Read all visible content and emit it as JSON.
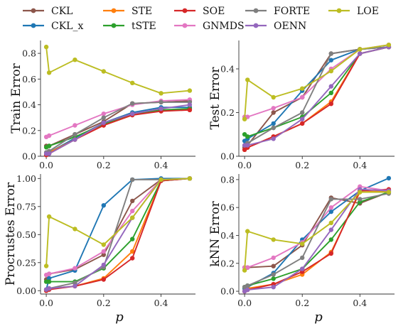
{
  "figure": {
    "xlabel": "p"
  },
  "legend": [
    {
      "name": "CKL",
      "color": "#8c564b"
    },
    {
      "name": "CKL_x",
      "color": "#1f77b4"
    },
    {
      "name": "STE",
      "color": "#ff7f0e"
    },
    {
      "name": "tSTE",
      "color": "#2ca02c"
    },
    {
      "name": "SOE",
      "color": "#d62728"
    },
    {
      "name": "GNMDS",
      "color": "#e377c2"
    },
    {
      "name": "FORTE",
      "color": "#7f7f7f"
    },
    {
      "name": "OENN",
      "color": "#9467bd"
    },
    {
      "name": "LOE",
      "color": "#bcbd22"
    }
  ],
  "chart_data": [
    {
      "type": "line",
      "ylabel": "Train Error",
      "xlim": [
        -0.02,
        0.52
      ],
      "ylim": [
        0,
        0.9
      ],
      "xticks": [
        "0.0",
        "0.2",
        "0.4"
      ],
      "yticks": [
        "0.0",
        "0.2",
        "0.4",
        "0.6",
        "0.8"
      ],
      "series": [
        {
          "name": "CKL",
          "x": [
            0,
            0.01,
            0.1,
            0.2,
            0.3,
            0.4,
            0.5
          ],
          "y": [
            0.08,
            0.08,
            0.17,
            0.27,
            0.41,
            0.42,
            0.43
          ]
        },
        {
          "name": "CKL_x",
          "x": [
            0,
            0.01,
            0.1,
            0.2,
            0.3,
            0.4,
            0.5
          ],
          "y": [
            0.02,
            0.03,
            0.14,
            0.26,
            0.34,
            0.38,
            0.38
          ]
        },
        {
          "name": "STE",
          "x": [
            0,
            0.01,
            0.1,
            0.2,
            0.3,
            0.4,
            0.5
          ],
          "y": [
            0.01,
            0.03,
            0.13,
            0.24,
            0.32,
            0.36,
            0.36
          ]
        },
        {
          "name": "tSTE",
          "x": [
            0,
            0.01,
            0.1,
            0.2,
            0.3,
            0.4,
            0.5
          ],
          "y": [
            0.07,
            0.08,
            0.15,
            0.25,
            0.33,
            0.36,
            0.37
          ]
        },
        {
          "name": "SOE",
          "x": [
            0,
            0.01,
            0.1,
            0.2,
            0.3,
            0.4,
            0.5
          ],
          "y": [
            0.01,
            0.02,
            0.13,
            0.24,
            0.32,
            0.35,
            0.36
          ]
        },
        {
          "name": "GNMDS",
          "x": [
            0,
            0.01,
            0.1,
            0.2,
            0.3,
            0.4,
            0.5
          ],
          "y": [
            0.15,
            0.16,
            0.24,
            0.33,
            0.4,
            0.43,
            0.44
          ]
        },
        {
          "name": "FORTE",
          "x": [
            0,
            0.01,
            0.1,
            0.2,
            0.3,
            0.4,
            0.5
          ],
          "y": [
            0.03,
            0.04,
            0.17,
            0.3,
            0.41,
            0.42,
            0.42
          ]
        },
        {
          "name": "OENN",
          "x": [
            0,
            0.01,
            0.1,
            0.2,
            0.3,
            0.4,
            0.5
          ],
          "y": [
            0.02,
            0.02,
            0.13,
            0.26,
            0.33,
            0.37,
            0.4
          ]
        },
        {
          "name": "LOE",
          "x": [
            0,
            0.01,
            0.1,
            0.2,
            0.3,
            0.4,
            0.5
          ],
          "y": [
            0.85,
            0.65,
            0.75,
            0.66,
            0.57,
            0.49,
            0.51
          ]
        }
      ]
    },
    {
      "type": "line",
      "ylabel": "Test Error",
      "xlim": [
        -0.02,
        0.52
      ],
      "ylim": [
        0,
        0.53
      ],
      "xticks": [
        "0.0",
        "0.2",
        "0.4"
      ],
      "yticks": [
        "0.0",
        "0.2",
        "0.4"
      ],
      "series": [
        {
          "name": "CKL",
          "x": [
            0,
            0.01,
            0.1,
            0.2,
            0.3,
            0.4,
            0.5
          ],
          "y": [
            0.04,
            0.05,
            0.2,
            0.27,
            0.47,
            0.49,
            0.5
          ]
        },
        {
          "name": "CKL_x",
          "x": [
            0,
            0.01,
            0.1,
            0.2,
            0.3,
            0.4,
            0.5
          ],
          "y": [
            0.07,
            0.08,
            0.15,
            0.3,
            0.44,
            0.49,
            0.5
          ]
        },
        {
          "name": "STE",
          "x": [
            0,
            0.01,
            0.1,
            0.2,
            0.3,
            0.4,
            0.5
          ],
          "y": [
            0.03,
            0.04,
            0.09,
            0.15,
            0.25,
            0.47,
            0.5
          ]
        },
        {
          "name": "tSTE",
          "x": [
            0,
            0.01,
            0.1,
            0.2,
            0.3,
            0.4,
            0.5
          ],
          "y": [
            0.1,
            0.09,
            0.13,
            0.18,
            0.29,
            0.47,
            0.5
          ]
        },
        {
          "name": "SOE",
          "x": [
            0,
            0.01,
            0.1,
            0.2,
            0.3,
            0.4,
            0.5
          ],
          "y": [
            0.03,
            0.04,
            0.09,
            0.15,
            0.24,
            0.47,
            0.5
          ]
        },
        {
          "name": "GNMDS",
          "x": [
            0,
            0.01,
            0.1,
            0.2,
            0.3,
            0.4,
            0.5
          ],
          "y": [
            0.18,
            0.18,
            0.22,
            0.27,
            0.4,
            0.49,
            0.51
          ]
        },
        {
          "name": "FORTE",
          "x": [
            0,
            0.01,
            0.1,
            0.2,
            0.3,
            0.4,
            0.5
          ],
          "y": [
            0.05,
            0.06,
            0.13,
            0.2,
            0.47,
            0.49,
            0.5
          ]
        },
        {
          "name": "OENN",
          "x": [
            0,
            0.01,
            0.1,
            0.2,
            0.3,
            0.4,
            0.5
          ],
          "y": [
            0.05,
            0.05,
            0.08,
            0.17,
            0.32,
            0.47,
            0.5
          ]
        },
        {
          "name": "LOE",
          "x": [
            0,
            0.01,
            0.1,
            0.2,
            0.3,
            0.4,
            0.5
          ],
          "y": [
            0.17,
            0.35,
            0.27,
            0.31,
            0.39,
            0.49,
            0.51
          ]
        }
      ]
    },
    {
      "type": "line",
      "ylabel": "Procrustes Error",
      "xlim": [
        -0.02,
        0.52
      ],
      "ylim": [
        -0.03,
        1.04
      ],
      "xticks": [
        "0.0",
        "0.2",
        "0.4"
      ],
      "yticks": [
        "0.00",
        "0.25",
        "0.50",
        "0.75",
        "1.00"
      ],
      "series": [
        {
          "name": "CKL",
          "x": [
            0,
            0.01,
            0.1,
            0.2,
            0.3,
            0.4,
            0.5
          ],
          "y": [
            0.1,
            0.15,
            0.19,
            0.32,
            0.8,
            0.99,
            1.0
          ]
        },
        {
          "name": "CKL_x",
          "x": [
            0,
            0.01,
            0.1,
            0.2,
            0.3,
            0.4,
            0.5
          ],
          "y": [
            0.01,
            0.11,
            0.18,
            0.76,
            0.99,
            1.0,
            1.0
          ]
        },
        {
          "name": "STE",
          "x": [
            0,
            0.01,
            0.1,
            0.2,
            0.3,
            0.4,
            0.5
          ],
          "y": [
            0.0,
            0.02,
            0.04,
            0.11,
            0.35,
            0.98,
            1.0
          ]
        },
        {
          "name": "tSTE",
          "x": [
            0,
            0.01,
            0.1,
            0.2,
            0.3,
            0.4,
            0.5
          ],
          "y": [
            0.08,
            0.08,
            0.08,
            0.2,
            0.46,
            0.98,
            1.0
          ]
        },
        {
          "name": "SOE",
          "x": [
            0,
            0.01,
            0.1,
            0.2,
            0.3,
            0.4,
            0.5
          ],
          "y": [
            0.0,
            0.01,
            0.04,
            0.1,
            0.29,
            0.98,
            1.0
          ]
        },
        {
          "name": "GNMDS",
          "x": [
            0,
            0.01,
            0.1,
            0.2,
            0.3,
            0.4,
            0.5
          ],
          "y": [
            0.14,
            0.15,
            0.2,
            0.35,
            0.71,
            0.99,
            1.0
          ]
        },
        {
          "name": "FORTE",
          "x": [
            0,
            0.01,
            0.1,
            0.2,
            0.3,
            0.4,
            0.5
          ],
          "y": [
            0.01,
            0.02,
            0.07,
            0.21,
            0.99,
            0.99,
            1.0
          ]
        },
        {
          "name": "OENN",
          "x": [
            0,
            0.01,
            0.1,
            0.2,
            0.3,
            0.4,
            0.5
          ],
          "y": [
            0.01,
            0.02,
            0.04,
            0.23,
            0.65,
            0.99,
            1.0
          ]
        },
        {
          "name": "LOE",
          "x": [
            0,
            0.01,
            0.1,
            0.2,
            0.3,
            0.4,
            0.5
          ],
          "y": [
            0.22,
            0.66,
            0.55,
            0.41,
            0.65,
            0.99,
            1.0
          ]
        }
      ]
    },
    {
      "type": "line",
      "ylabel": "kNN Error",
      "xlim": [
        -0.02,
        0.52
      ],
      "ylim": [
        -0.02,
        0.84
      ],
      "xticks": [
        "0.0",
        "0.2",
        "0.4"
      ],
      "yticks": [
        "0.0",
        "0.2",
        "0.4",
        "0.6",
        "0.8"
      ],
      "series": [
        {
          "name": "CKL",
          "x": [
            0,
            0.01,
            0.1,
            0.2,
            0.3,
            0.4,
            0.5
          ],
          "y": [
            0.17,
            0.17,
            0.18,
            0.33,
            0.67,
            0.63,
            0.71
          ]
        },
        {
          "name": "CKL_x",
          "x": [
            0,
            0.01,
            0.1,
            0.2,
            0.3,
            0.4,
            0.5
          ],
          "y": [
            0.02,
            0.03,
            0.13,
            0.37,
            0.57,
            0.72,
            0.81
          ]
        },
        {
          "name": "STE",
          "x": [
            0,
            0.01,
            0.1,
            0.2,
            0.3,
            0.4,
            0.5
          ],
          "y": [
            0.0,
            0.02,
            0.05,
            0.12,
            0.28,
            0.71,
            0.72
          ]
        },
        {
          "name": "tSTE",
          "x": [
            0,
            0.01,
            0.1,
            0.2,
            0.3,
            0.4,
            0.5
          ],
          "y": [
            0.03,
            0.04,
            0.09,
            0.16,
            0.37,
            0.64,
            0.71
          ]
        },
        {
          "name": "SOE",
          "x": [
            0,
            0.01,
            0.1,
            0.2,
            0.3,
            0.4,
            0.5
          ],
          "y": [
            0.0,
            0.01,
            0.05,
            0.14,
            0.27,
            0.72,
            0.73
          ]
        },
        {
          "name": "GNMDS",
          "x": [
            0,
            0.01,
            0.1,
            0.2,
            0.3,
            0.4,
            0.5
          ],
          "y": [
            0.17,
            0.17,
            0.24,
            0.35,
            0.6,
            0.75,
            0.72
          ]
        },
        {
          "name": "FORTE",
          "x": [
            0,
            0.01,
            0.1,
            0.2,
            0.3,
            0.4,
            0.5
          ],
          "y": [
            0.03,
            0.04,
            0.12,
            0.24,
            0.66,
            0.66,
            0.7
          ]
        },
        {
          "name": "OENN",
          "x": [
            0,
            0.01,
            0.1,
            0.2,
            0.3,
            0.4,
            0.5
          ],
          "y": [
            0.0,
            0.01,
            0.03,
            0.16,
            0.44,
            0.73,
            0.72
          ]
        },
        {
          "name": "LOE",
          "x": [
            0,
            0.01,
            0.1,
            0.2,
            0.3,
            0.4,
            0.5
          ],
          "y": [
            0.15,
            0.43,
            0.37,
            0.34,
            0.49,
            0.71,
            0.71
          ]
        }
      ]
    }
  ]
}
